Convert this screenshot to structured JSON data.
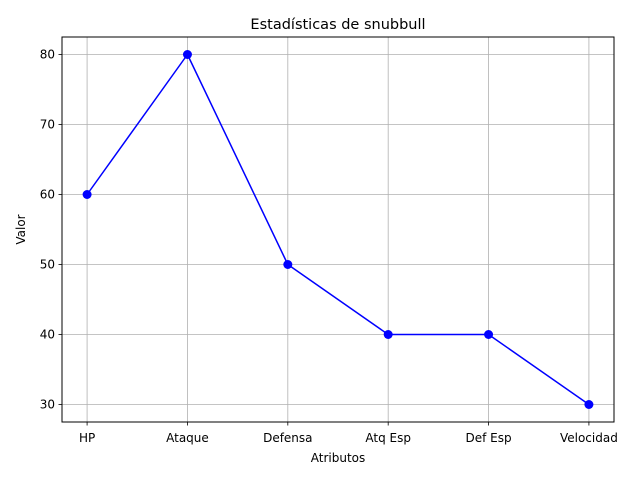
{
  "chart_data": {
    "type": "line",
    "title": "Estadísticas de snubbull",
    "xlabel": "Atributos",
    "ylabel": "Valor",
    "categories": [
      "HP",
      "Ataque",
      "Defensa",
      "Atq Esp",
      "Def Esp",
      "Velocidad"
    ],
    "series": [
      {
        "values": [
          60,
          80,
          50,
          40,
          40,
          30
        ],
        "color": "#0000ff",
        "marker": "circle"
      }
    ],
    "ylim": [
      27.5,
      82.5
    ],
    "yticks": [
      30,
      40,
      50,
      60,
      70,
      80
    ],
    "grid": true
  }
}
